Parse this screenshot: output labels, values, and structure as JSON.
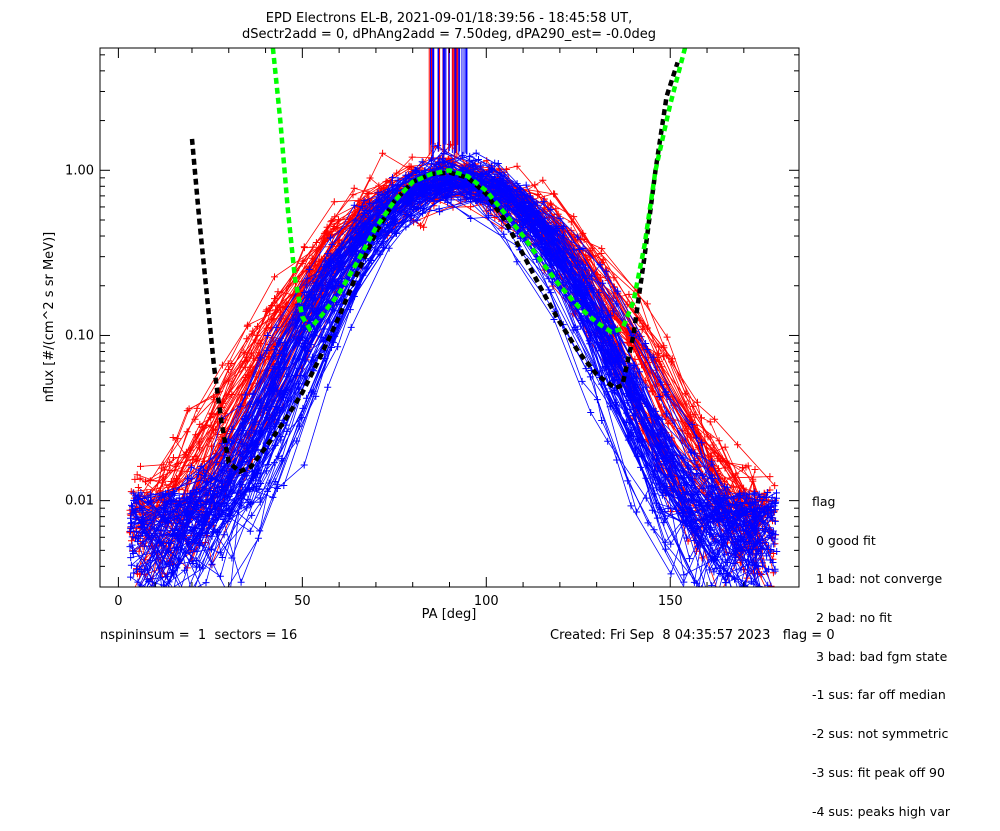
{
  "chart_data": {
    "type": "line",
    "title_line1": "EPD Electrons EL-B, 2021-09-01/18:39:56 - 18:45:58 UT,",
    "title_line2": "dSectr2add = 0, dPhAng2add = 7.50deg, dPA290_est=  -0.0deg",
    "xlabel": "PA [deg]",
    "ylabel": "nflux [#/(cm^2 s sr MeV)]",
    "xlim": [
      -5,
      185
    ],
    "ylim": [
      0.003,
      5.5
    ],
    "yscale": "log",
    "x_ticks": [
      "0",
      "50",
      "100",
      "150"
    ],
    "y_ticks": [
      "0.01",
      "0.10",
      "1.00"
    ],
    "colors": {
      "red": "#ff0000",
      "blue": "#0000ff",
      "black_fit": "#000000",
      "green_fit": "#00ff00"
    },
    "series": [
      {
        "color": "black",
        "style": "dashed",
        "x": [
          20,
          22,
          24,
          26,
          28,
          30,
          33,
          36,
          40,
          45,
          50,
          55,
          60,
          65,
          70,
          75,
          80,
          85,
          90,
          95,
          100,
          105,
          110,
          115,
          120,
          125,
          130,
          135,
          137,
          140,
          143,
          146,
          149,
          152
        ],
        "y": [
          1.55,
          0.5,
          0.18,
          0.065,
          0.03,
          0.017,
          0.015,
          0.016,
          0.021,
          0.03,
          0.045,
          0.075,
          0.13,
          0.24,
          0.42,
          0.65,
          0.85,
          0.95,
          0.97,
          0.9,
          0.72,
          0.5,
          0.31,
          0.19,
          0.12,
          0.08,
          0.058,
          0.048,
          0.05,
          0.1,
          0.3,
          1.0,
          2.8,
          4.5
        ]
      },
      {
        "color": "green",
        "style": "dashed",
        "x": [
          42,
          44,
          46,
          48,
          50,
          52,
          55,
          60,
          65,
          70,
          75,
          80,
          85,
          90,
          95,
          100,
          105,
          110,
          115,
          120,
          125,
          130,
          134,
          137,
          140,
          143,
          146,
          150,
          154
        ],
        "y": [
          5.5,
          2.0,
          0.6,
          0.22,
          0.13,
          0.11,
          0.13,
          0.18,
          0.28,
          0.45,
          0.65,
          0.85,
          0.95,
          1.0,
          0.92,
          0.75,
          0.55,
          0.4,
          0.28,
          0.2,
          0.15,
          0.12,
          0.105,
          0.11,
          0.16,
          0.35,
          1.0,
          2.5,
          5.5
        ]
      }
    ]
  },
  "footer": {
    "left": "nspininsum =  1  sectors = 16",
    "right": "Created: Fri Sep  8 04:35:57 2023   flag = 0"
  },
  "legend": {
    "title": "flag",
    "items": [
      " 0 good fit",
      " 1 bad: not converge",
      " 2 bad: no fit",
      " 3 bad: bad fgm state",
      "-1 sus: far off median",
      "-2 sus: not symmetric",
      "-3 sus: fit peak off 90",
      "-4 sus: peaks high var"
    ]
  }
}
